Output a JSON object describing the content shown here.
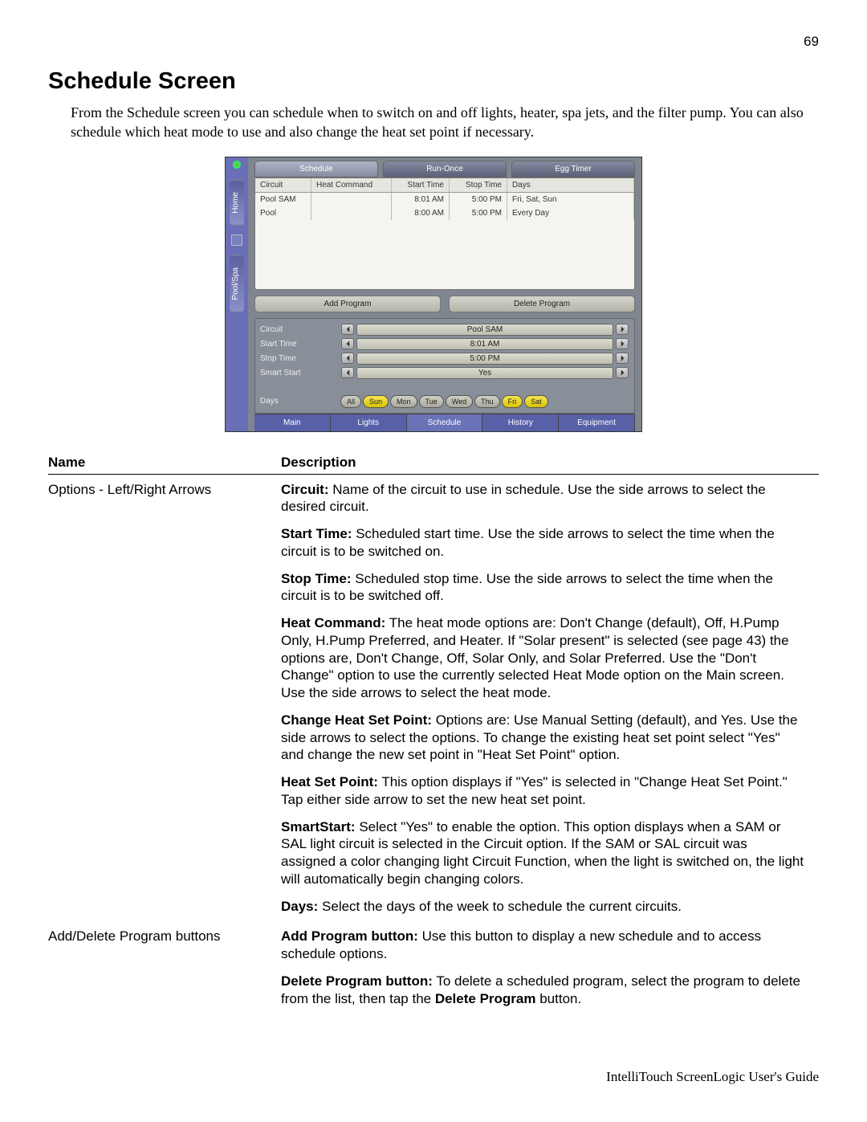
{
  "pageNumber": "69",
  "title": "Schedule Screen",
  "intro": "From the Schedule screen you can schedule when to switch on and off lights, heater, spa jets, and the filter pump. You can also schedule which heat mode to use and also change the heat set point if necessary.",
  "footer": "IntelliTouch ScreenLogic User's Guide",
  "screenshot": {
    "side": {
      "tab1": "Home",
      "tab2": "Pool/Spa"
    },
    "topTabs": {
      "t1": "Schedule",
      "t2": "Run-Once",
      "t3": "Egg Timer"
    },
    "gridHeaders": {
      "c1": "Circuit",
      "c2": "Heat Command",
      "c3": "Start Time",
      "c4": "Stop Time",
      "c5": "Days"
    },
    "gridRows": [
      {
        "c1": "Pool SAM",
        "c2": "",
        "c3": "8:01  AM",
        "c4": "5:00  PM",
        "c5": "Fri, Sat, Sun"
      },
      {
        "c1": "Pool",
        "c2": "",
        "c3": "8:00  AM",
        "c4": "5:00  PM",
        "c5": "Every Day"
      }
    ],
    "buttons": {
      "add": "Add Program",
      "del": "Delete Program"
    },
    "options": [
      {
        "label": "Circuit",
        "value": "Pool SAM"
      },
      {
        "label": "Start Time",
        "value": "8:01   AM"
      },
      {
        "label": "Stop Time",
        "value": "5:00   PM"
      },
      {
        "label": "Smart Start",
        "value": "Yes"
      }
    ],
    "daysLabel": "Days",
    "dayPills": [
      {
        "t": "All",
        "sel": false
      },
      {
        "t": "Sun",
        "sel": true
      },
      {
        "t": "Mon",
        "sel": false
      },
      {
        "t": "Tue",
        "sel": false
      },
      {
        "t": "Wed",
        "sel": false
      },
      {
        "t": "Thu",
        "sel": false
      },
      {
        "t": "Fri",
        "sel": true
      },
      {
        "t": "Sat",
        "sel": true
      }
    ],
    "bottomTabs": {
      "b1": "Main",
      "b2": "Lights",
      "b3": "Schedule",
      "b4": "History",
      "b5": "Equipment"
    }
  },
  "descTable": {
    "headName": "Name",
    "headDesc": "Description",
    "rows": [
      {
        "name": "Options - Left/Right Arrows",
        "desc": [
          {
            "bold": "Circuit:",
            "text": " Name of the circuit to use in schedule. Use the side arrows to select the desired circuit."
          },
          {
            "bold": "Start Time:",
            "text": " Scheduled start time. Use the side arrows to select the time when the circuit is to be switched on."
          },
          {
            "bold": "Stop Time:",
            "text": " Scheduled stop time. Use the side arrows to select the time when the circuit is to be switched off."
          },
          {
            "bold": "Heat Command:",
            "text": " The heat mode options are:  Don't Change (default), Off, H.Pump Only, H.Pump Preferred, and Heater. If \"Solar present\" is selected (see page 43) the options are, Don't Change, Off, Solar Only, and Solar Preferred.  Use the \"Don't Change\" option to use the currently selected Heat Mode option on the Main screen. Use the side arrows to select the heat mode."
          },
          {
            "bold": "Change Heat Set Point:",
            "text": " Options are: Use Manual Setting (default), and Yes. Use the side arrows to select the options. To change the existing heat set point select \"Yes\" and change the new set point in \"Heat Set Point\" option."
          },
          {
            "bold": "Heat Set Point:",
            "text": " This option displays if \"Yes\" is selected in \"Change Heat Set Point.\" Tap either side arrow to set the new heat set point."
          },
          {
            "bold": "SmartStart:",
            "text": " Select \"Yes\" to enable the option. This option displays when a SAM or SAL light circuit is selected in the Circuit option.  If the SAM or SAL circuit was assigned a color changing light Circuit Function, when the light is switched on, the light will automatically begin changing colors."
          },
          {
            "bold": "Days:",
            "text": " Select the days of the week to schedule the current circuits."
          }
        ]
      },
      {
        "name": "Add/Delete Program buttons",
        "desc": [
          {
            "bold": "Add Program button:",
            "text": " Use this button to display a new schedule and to access schedule options."
          },
          {
            "bold": "Delete Program button:",
            "text": " To delete a scheduled program, select the program to delete from the list, then tap the ",
            "bold2": " Delete Program ",
            "text2": "button."
          }
        ]
      }
    ]
  }
}
